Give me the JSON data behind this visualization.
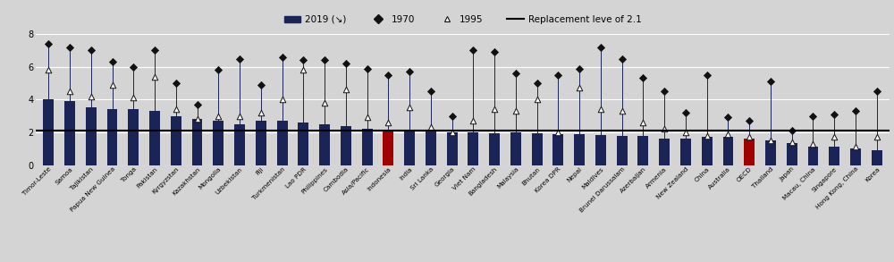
{
  "categories": [
    "Timor-Leste",
    "Samoa",
    "Tajikistan",
    "Papua New Guinea",
    "Tonga",
    "Pakistan",
    "Kyrgyzstan",
    "Kazakhstan",
    "Mongolia",
    "Uzbekistan",
    "Fiji",
    "Turkmenistan",
    "Lao PDR",
    "Philippines",
    "Cambodia",
    "Asia/Pacific",
    "Indonesia",
    "India",
    "Sri Lanka",
    "Georgia",
    "Viet Nam",
    "Bangladesh",
    "Malaysia",
    "Bhutan",
    "Korea DPR",
    "Nepal",
    "Maldives",
    "Brunei Darussalam",
    "Azerbaijan",
    "Armenia",
    "New Zealand",
    "China",
    "Australia",
    "OECD",
    "Thailand",
    "Japan",
    "Macau, China",
    "Singapore",
    "Hong Kong, China",
    "Korea"
  ],
  "bar_2019": [
    4.0,
    3.9,
    3.5,
    3.4,
    3.4,
    3.3,
    3.0,
    2.8,
    2.7,
    2.5,
    2.7,
    2.7,
    2.6,
    2.5,
    2.4,
    2.2,
    2.1,
    2.1,
    2.1,
    2.0,
    2.0,
    1.95,
    2.0,
    1.95,
    1.9,
    1.9,
    1.85,
    1.8,
    1.8,
    1.6,
    1.6,
    1.7,
    1.7,
    1.6,
    1.5,
    1.35,
    1.1,
    1.1,
    1.0,
    0.9
  ],
  "val_1970": [
    7.4,
    7.2,
    7.0,
    6.3,
    6.0,
    7.0,
    5.0,
    3.7,
    5.8,
    6.5,
    4.9,
    6.6,
    6.4,
    6.4,
    6.2,
    5.9,
    5.5,
    5.7,
    4.5,
    3.0,
    7.0,
    6.9,
    5.6,
    5.0,
    5.5,
    5.9,
    7.2,
    6.5,
    5.3,
    4.5,
    3.2,
    5.5,
    2.9,
    2.7,
    5.1,
    2.1,
    3.0,
    3.1,
    3.3,
    4.5
  ],
  "val_1995": [
    5.8,
    4.5,
    4.2,
    4.9,
    4.1,
    5.4,
    3.4,
    2.8,
    3.0,
    3.0,
    3.2,
    4.0,
    5.8,
    3.8,
    4.6,
    2.9,
    2.6,
    3.5,
    2.3,
    2.0,
    2.7,
    3.4,
    3.3,
    4.0,
    2.0,
    4.7,
    3.4,
    3.3,
    2.6,
    2.2,
    2.0,
    1.8,
    1.9,
    1.7,
    1.5,
    1.4,
    1.3,
    1.7,
    1.1,
    1.7
  ],
  "bar_colors": [
    "#1a2456",
    "#1a2456",
    "#1a2456",
    "#1a2456",
    "#1a2456",
    "#1a2456",
    "#1a2456",
    "#1a2456",
    "#1a2456",
    "#1a2456",
    "#1a2456",
    "#1a2456",
    "#1a2456",
    "#1a2456",
    "#1a2456",
    "#1a2456",
    "#a00000",
    "#1a2456",
    "#1a2456",
    "#1a2456",
    "#1a2456",
    "#1a2456",
    "#1a2456",
    "#1a2456",
    "#1a2456",
    "#1a2456",
    "#1a2456",
    "#1a2456",
    "#1a2456",
    "#1a2456",
    "#1a2456",
    "#1a2456",
    "#1a2456",
    "#a00000",
    "#1a2456",
    "#1a2456",
    "#1a2456",
    "#1a2456",
    "#1a2456",
    "#1a2456"
  ],
  "replacement_level": 2.1,
  "ylim": [
    0,
    8
  ],
  "yticks": [
    0,
    2,
    4,
    6,
    8
  ],
  "legend_labels": [
    "2019 (↘)",
    "1970",
    "1995",
    "Replacement leve of 2.1"
  ],
  "bg_color": "#d4d4d4",
  "bar_color_default": "#1a2456",
  "bar_color_highlight": "#a00000",
  "line_color": "#1a2456"
}
